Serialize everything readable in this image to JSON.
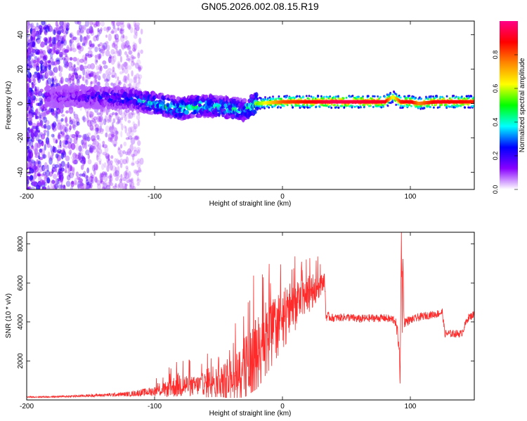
{
  "title": "GN05.2026.002.08.15.R19",
  "chart_data": [
    {
      "type": "heatmap",
      "xlabel": "Height of straight line (km)",
      "ylabel": "Frequency (Hz)",
      "xlim": [
        -200,
        150
      ],
      "ylim": [
        -50,
        48
      ],
      "x_ticks": [
        -200,
        -100,
        0,
        100
      ],
      "y_ticks": [
        -40,
        -20,
        0,
        20,
        40
      ],
      "colorbar": {
        "label": "Normalized spectral amplitude",
        "range": [
          0,
          1
        ],
        "ticks": [
          0.0,
          0.2,
          0.4,
          0.6,
          0.8
        ],
        "tick_labels": [
          "0.0",
          "0.2",
          "0.4",
          "0.6",
          "0.8"
        ],
        "colors": [
          "#ffffff",
          "#8800ff",
          "#0000ff",
          "#00ffff",
          "#00ff00",
          "#ffff00",
          "#ff8800",
          "#ff0000",
          "#ff0088"
        ]
      },
      "ridge": {
        "x": [
          -180,
          -150,
          -120,
          -100,
          -80,
          -60,
          -40,
          -30,
          -20,
          0,
          40,
          80,
          86,
          92,
          100,
          106,
          120,
          150
        ],
        "frequency": [
          4,
          4,
          3,
          0,
          -3,
          -1,
          -3,
          -4,
          0,
          1,
          1,
          1,
          4,
          1,
          1,
          0,
          1,
          1
        ],
        "amplitude": [
          0.12,
          0.18,
          0.25,
          0.35,
          0.4,
          0.38,
          0.35,
          0.3,
          0.55,
          0.8,
          0.95,
          0.9,
          0.6,
          0.85,
          0.9,
          0.75,
          0.9,
          0.85
        ]
      },
      "scatter_region": {
        "x": [
          -200,
          -110
        ],
        "frequency": [
          -50,
          48
        ],
        "amplitude": [
          0.05,
          0.25
        ]
      }
    },
    {
      "type": "line",
      "xlabel": "Height of straight line (km)",
      "ylabel": "SNR (10 * v/v)",
      "xlim": [
        -200,
        150
      ],
      "ylim": [
        0,
        8600
      ],
      "x_ticks": [
        -200,
        -100,
        0,
        100
      ],
      "y_ticks": [
        2000,
        4000,
        6000,
        8000
      ],
      "color": "#ff2a2a",
      "series": [
        {
          "name": "SNR",
          "x": [
            -200,
            -180,
            -160,
            -140,
            -120,
            -100,
            -90,
            -80,
            -70,
            -60,
            -50,
            -40,
            -30,
            -20,
            -10,
            0,
            10,
            20,
            30,
            33,
            34,
            40,
            50,
            60,
            70,
            80,
            88,
            91,
            92,
            93,
            94,
            95,
            100,
            110,
            120,
            125,
            127,
            140,
            145,
            150
          ],
          "y": [
            150,
            160,
            200,
            250,
            300,
            450,
            550,
            800,
            700,
            850,
            1000,
            1300,
            1800,
            2600,
            3500,
            4300,
            4900,
            5500,
            6000,
            6100,
            4300,
            4200,
            4250,
            4150,
            4200,
            4200,
            4100,
            3000,
            1100,
            8600,
            8600,
            4000,
            4100,
            4300,
            4400,
            4500,
            3400,
            3400,
            4200,
            4400
          ],
          "noise": [
            40,
            40,
            60,
            80,
            120,
            250,
            400,
            700,
            500,
            600,
            700,
            1000,
            1400,
            1700,
            1600,
            1400,
            1100,
            900,
            500,
            400,
            250,
            200,
            200,
            220,
            200,
            200,
            250,
            500,
            400,
            0,
            0,
            300,
            200,
            200,
            200,
            200,
            200,
            200,
            200,
            200
          ]
        }
      ]
    }
  ]
}
